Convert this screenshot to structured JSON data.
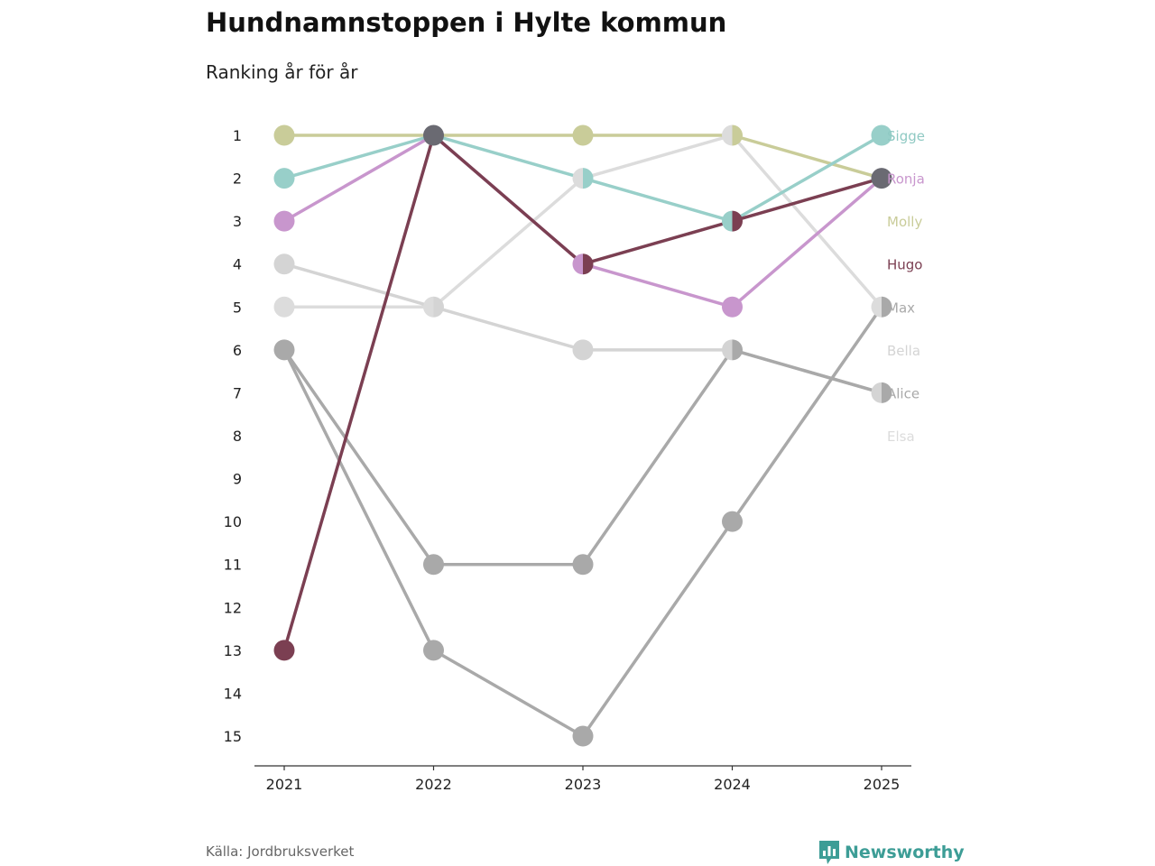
{
  "title": "Hundnamnstoppen i Hylte kommun",
  "subtitle": "Ranking år för år",
  "source": "Källa: Jordbruksverket",
  "brand": {
    "name": "Newsworthy",
    "color": "#3d9d96",
    "icon": "bar-chart-icon"
  },
  "chart_data": {
    "type": "line",
    "subtype": "bump",
    "title": "Hundnamnstoppen i Hylte kommun",
    "subtitle": "Ranking år för år",
    "xlabel": "",
    "ylabel": "",
    "x": [
      "2021",
      "2022",
      "2023",
      "2024",
      "2025"
    ],
    "y_ticks": [
      "1",
      "2",
      "3",
      "4",
      "5",
      "6",
      "7",
      "8",
      "9",
      "10",
      "11",
      "12",
      "13",
      "14",
      "15"
    ],
    "ylim": [
      1,
      15
    ],
    "y_inverted": true,
    "grid": false,
    "legend": "right-end labels",
    "series": [
      {
        "name": "Elsa",
        "color": "#dcdcdc",
        "values": [
          5,
          5,
          2,
          1,
          5
        ]
      },
      {
        "name": "Bella",
        "color": "#d4d4d4",
        "values": [
          4,
          5,
          6,
          6,
          7
        ]
      },
      {
        "name": "Alice",
        "color": "#a9a9a9",
        "values": [
          6,
          11,
          11,
          6,
          7
        ]
      },
      {
        "name": "Max",
        "color": "#a9a9a9",
        "values": [
          6,
          13,
          15,
          10,
          5
        ]
      },
      {
        "name": "Molly",
        "color": "#c9cc99",
        "values": [
          1,
          1,
          1,
          1,
          2
        ]
      },
      {
        "name": "Sigge",
        "color": "#98cfc9",
        "values": [
          2,
          1,
          2,
          3,
          1
        ]
      },
      {
        "name": "Ronja",
        "color": "#c896cd",
        "values": [
          3,
          1,
          4,
          5,
          2
        ]
      },
      {
        "name": "Hugo",
        "color": "#7b3f52",
        "values": [
          13,
          1,
          4,
          3,
          2
        ]
      }
    ],
    "shared_point_color": "#6a6a72",
    "label_order": [
      "Sigge",
      "Ronja",
      "Molly",
      "Hugo",
      "Max",
      "Bella",
      "Alice",
      "Elsa"
    ],
    "label_colors": {
      "Sigge": "#8fc9c3",
      "Ronja": "#c896cd",
      "Molly": "#c9cc99",
      "Hugo": "#7b3f52",
      "Max": "#a9a9a9",
      "Bella": "#d4d4d4",
      "Alice": "#a9a9a9",
      "Elsa": "#dcdcdc"
    }
  }
}
